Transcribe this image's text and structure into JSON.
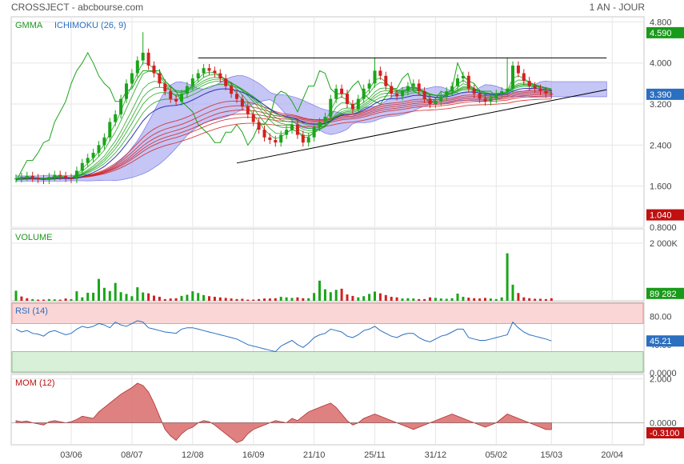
{
  "header": {
    "title": "CROSSJECT - abcbourse.com",
    "period": "1 AN - JOUR"
  },
  "colors": {
    "panel_border": "#c8c8c8",
    "grid": "#e6e6e6",
    "green_candle": "#1aa51a",
    "red_candle": "#d42020",
    "ichimoku_cloud": "#9f9ff0",
    "blue_line": "#2a35b5",
    "rsi_line": "#2a6fc0",
    "mom_fill": "#d96b6b",
    "label_green": "#1a9a1a",
    "label_blue": "#2a6fc0",
    "label_red": "#c01010",
    "rsi_over": "#fbd6d6",
    "rsi_under": "#d8f0d8"
  },
  "x_axis": {
    "labels": [
      {
        "text": "03/06",
        "idx": 10
      },
      {
        "text": "08/07",
        "idx": 21
      },
      {
        "text": "12/08",
        "idx": 32
      },
      {
        "text": "16/09",
        "idx": 43
      },
      {
        "text": "21/10",
        "idx": 54
      },
      {
        "text": "25/11",
        "idx": 65
      },
      {
        "text": "31/12",
        "idx": 76
      },
      {
        "text": "05/02",
        "idx": 87
      },
      {
        "text": "15/03",
        "idx": 97
      },
      {
        "text": "20/04",
        "idx": 108
      }
    ]
  },
  "chart_data": [
    {
      "type": "line",
      "panel": "price",
      "legend": [
        "GMMA",
        "ICHIMOKU (26, 9)"
      ],
      "yticks": [
        4.8,
        4.0,
        3.2,
        2.4,
        1.6,
        0.8
      ],
      "ytick_labels": [
        "4.800",
        "4.000",
        "3.200",
        "2.400",
        "1.600",
        "0.8000"
      ],
      "ylim": [
        0.8,
        4.9
      ],
      "price_badges": [
        {
          "text": "4.590",
          "value": 4.59,
          "color": "#1a9a1a"
        },
        {
          "text": "3.390",
          "value": 3.39,
          "color": "#2a6fc0"
        },
        {
          "text": "1.040",
          "value": 1.04,
          "color": "#c01010"
        }
      ],
      "close": [
        1.75,
        1.78,
        1.8,
        1.76,
        1.74,
        1.72,
        1.78,
        1.82,
        1.8,
        1.76,
        1.74,
        1.9,
        2.05,
        2.15,
        2.25,
        2.4,
        2.55,
        2.85,
        3.0,
        3.3,
        3.6,
        3.8,
        4.05,
        4.2,
        3.95,
        3.8,
        3.6,
        3.45,
        3.3,
        3.25,
        3.4,
        3.55,
        3.7,
        3.8,
        3.9,
        3.85,
        3.8,
        3.7,
        3.55,
        3.4,
        3.3,
        3.15,
        3.0,
        2.85,
        2.7,
        2.55,
        2.5,
        2.45,
        2.6,
        2.7,
        2.8,
        2.6,
        2.45,
        2.55,
        2.75,
        2.85,
        2.95,
        3.3,
        3.5,
        3.4,
        3.2,
        3.1,
        3.3,
        3.5,
        3.6,
        3.85,
        3.75,
        3.55,
        3.4,
        3.35,
        3.45,
        3.55,
        3.6,
        3.45,
        3.3,
        3.2,
        3.25,
        3.35,
        3.45,
        3.55,
        3.7,
        3.75,
        3.5,
        3.4,
        3.3,
        3.25,
        3.3,
        3.4,
        3.45,
        3.5,
        3.95,
        3.8,
        3.65,
        3.55,
        3.5,
        3.45,
        3.4,
        3.39
      ],
      "high_spikes": [
        {
          "idx": 23,
          "value": 4.6
        },
        {
          "idx": 65,
          "value": 4.1
        },
        {
          "idx": 89,
          "value": 4.1
        }
      ],
      "annotations": [
        {
          "type": "hline",
          "x_from_idx": 33,
          "x_to_idx": 107,
          "value": 4.1
        },
        {
          "type": "trendline",
          "from": {
            "idx": 40,
            "value": 2.05
          },
          "to": {
            "idx": 107,
            "value": 3.48
          }
        }
      ]
    },
    {
      "type": "bar",
      "panel": "volume",
      "legend": [
        "VOLUME"
      ],
      "ytick_labels": [
        "2 000K"
      ],
      "ylim": [
        0,
        2500000
      ],
      "badge": {
        "text": "89 282",
        "value": 89282,
        "color": "#1a9a1a"
      },
      "values": [
        350000,
        150000,
        90000,
        60000,
        40000,
        40000,
        60000,
        50000,
        40000,
        80000,
        60000,
        330000,
        120000,
        280000,
        280000,
        760000,
        450000,
        340000,
        620000,
        300000,
        240000,
        160000,
        470000,
        290000,
        260000,
        180000,
        140000,
        60000,
        80000,
        90000,
        170000,
        210000,
        330000,
        270000,
        200000,
        160000,
        140000,
        120000,
        100000,
        80000,
        60000,
        70000,
        40000,
        40000,
        60000,
        80000,
        80000,
        90000,
        140000,
        120000,
        100000,
        120000,
        90000,
        90000,
        270000,
        700000,
        400000,
        300000,
        380000,
        420000,
        220000,
        170000,
        120000,
        160000,
        240000,
        320000,
        260000,
        200000,
        140000,
        120000,
        80000,
        90000,
        80000,
        60000,
        60000,
        120000,
        100000,
        80000,
        70000,
        90000,
        250000,
        140000,
        110000,
        90000,
        80000,
        100000,
        80000,
        60000,
        120000,
        1650000,
        560000,
        270000,
        120000,
        90000,
        70000,
        70000,
        60000,
        89282
      ],
      "up": [
        1,
        0,
        0,
        1,
        0,
        0,
        1,
        1,
        0,
        0,
        1,
        1,
        1,
        1,
        1,
        1,
        1,
        1,
        1,
        1,
        1,
        1,
        1,
        1,
        0,
        0,
        0,
        0,
        0,
        0,
        1,
        1,
        1,
        1,
        1,
        0,
        0,
        0,
        0,
        0,
        0,
        0,
        0,
        0,
        0,
        0,
        0,
        0,
        1,
        1,
        1,
        0,
        0,
        1,
        1,
        1,
        1,
        1,
        1,
        0,
        0,
        0,
        1,
        1,
        1,
        1,
        0,
        0,
        0,
        0,
        1,
        1,
        1,
        0,
        0,
        0,
        1,
        1,
        1,
        1,
        1,
        1,
        0,
        0,
        0,
        0,
        1,
        1,
        1,
        1,
        1,
        0,
        0,
        0,
        0,
        0,
        0,
        0
      ]
    },
    {
      "type": "line",
      "panel": "rsi",
      "legend": [
        "RSI (14)"
      ],
      "yticks": [
        80,
        40,
        0
      ],
      "ytick_labels": [
        "80.00",
        "40.00",
        "0.0000"
      ],
      "ylim": [
        0,
        100
      ],
      "zones": {
        "overbought": 70,
        "oversold": 30
      },
      "badge": {
        "text": "45.21",
        "value": 45.21,
        "color": "#2a6fc0"
      },
      "values": [
        62,
        58,
        60,
        56,
        55,
        52,
        58,
        60,
        57,
        54,
        56,
        62,
        66,
        64,
        66,
        70,
        68,
        64,
        72,
        68,
        66,
        70,
        74,
        72,
        64,
        62,
        60,
        58,
        57,
        56,
        62,
        64,
        64,
        62,
        60,
        58,
        56,
        54,
        52,
        50,
        48,
        44,
        40,
        38,
        36,
        34,
        32,
        30,
        38,
        42,
        46,
        40,
        36,
        42,
        50,
        54,
        56,
        62,
        60,
        58,
        52,
        50,
        54,
        60,
        62,
        66,
        60,
        56,
        52,
        50,
        54,
        56,
        56,
        50,
        46,
        44,
        48,
        52,
        54,
        58,
        62,
        62,
        50,
        48,
        46,
        46,
        48,
        50,
        52,
        54,
        72,
        64,
        58,
        54,
        52,
        50,
        48,
        45.21
      ]
    },
    {
      "type": "area",
      "panel": "momentum",
      "legend": [
        "MOM (12)"
      ],
      "yticks": [
        2.0,
        0.0
      ],
      "ytick_labels": [
        "2.000",
        "0.0000"
      ],
      "ylim": [
        -1.0,
        2.2
      ],
      "badge": {
        "text": "-0.3100",
        "value": -0.31,
        "color": "#c01010"
      },
      "values": [
        0.1,
        0.05,
        0.08,
        0.0,
        -0.05,
        -0.1,
        0.05,
        0.1,
        0.05,
        0.0,
        0.05,
        0.15,
        0.3,
        0.25,
        0.2,
        0.5,
        0.7,
        0.9,
        1.1,
        1.3,
        1.45,
        1.6,
        1.8,
        1.7,
        1.4,
        0.9,
        0.3,
        -0.3,
        -0.6,
        -0.8,
        -0.5,
        -0.3,
        -0.2,
        0.0,
        0.1,
        0.05,
        -0.1,
        -0.3,
        -0.5,
        -0.7,
        -0.9,
        -0.8,
        -0.5,
        -0.3,
        -0.2,
        -0.1,
        0.0,
        0.1,
        0.05,
        0.0,
        0.2,
        0.1,
        0.3,
        0.5,
        0.6,
        0.7,
        0.8,
        0.9,
        0.7,
        0.4,
        0.1,
        -0.1,
        0.0,
        0.2,
        0.3,
        0.4,
        0.3,
        0.2,
        0.1,
        0.0,
        -0.1,
        -0.2,
        -0.3,
        -0.2,
        -0.1,
        0.0,
        0.1,
        0.2,
        0.3,
        0.4,
        0.3,
        0.2,
        0.1,
        0.0,
        -0.1,
        -0.2,
        -0.1,
        0.0,
        0.2,
        0.4,
        0.3,
        0.2,
        0.1,
        0.0,
        -0.1,
        -0.2,
        -0.3,
        -0.31
      ]
    }
  ]
}
